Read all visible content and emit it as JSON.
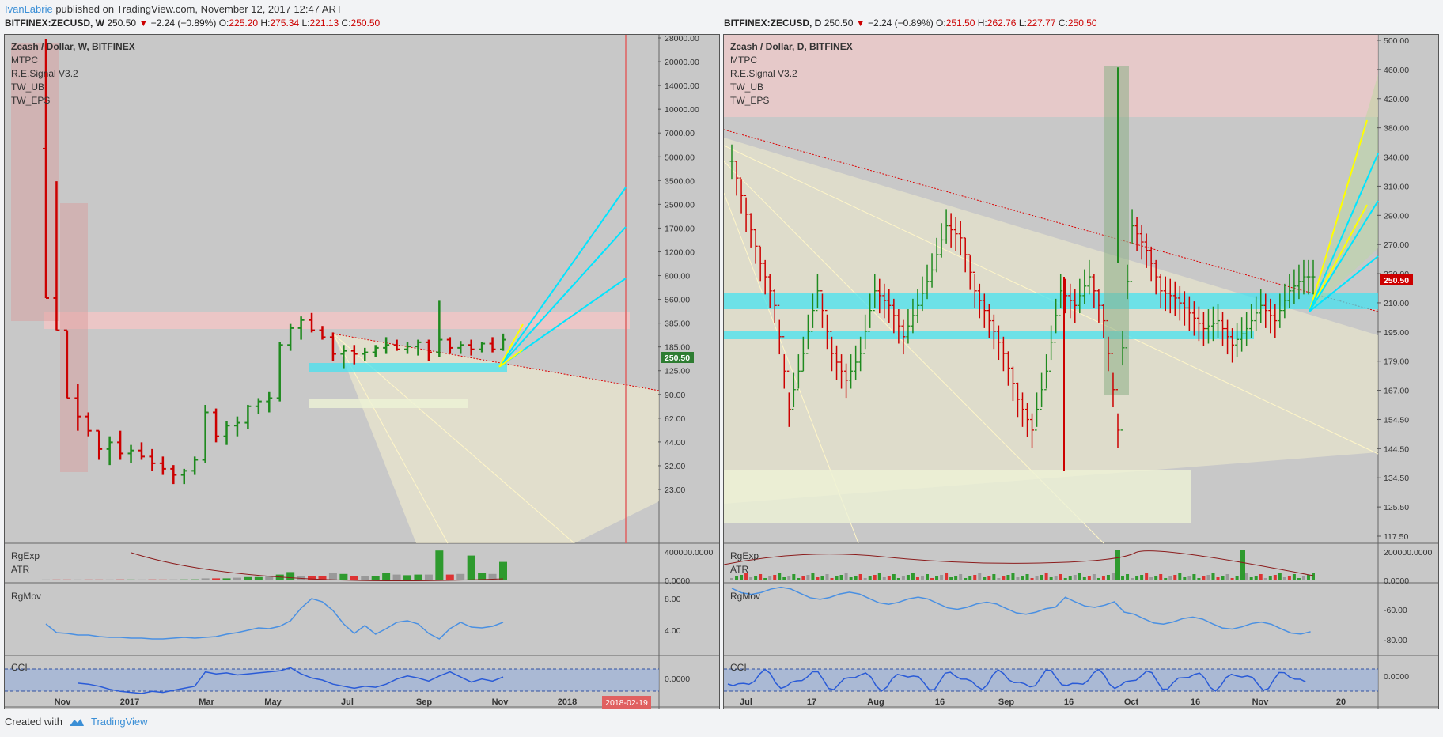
{
  "header": {
    "user": "IvanLabrie",
    "text": " published on TradingView.com, November 12, 2017 12:47 ART"
  },
  "left": {
    "symbol": "BITFINEX:ZECUSD, W",
    "price": "250.50",
    "change": "−2.24 (−0.89%)",
    "o_label": "O:",
    "o": "225.20",
    "h_label": "H:",
    "h": "275.34",
    "l_label": "L:",
    "l": "221.13",
    "c_label": "C:",
    "c": "250.50",
    "title": "Zcash / Dollar, W, BITFINEX",
    "studies": [
      "MTPC",
      "R.E.Signal V3.2",
      "TW_UB",
      "TW_EPS"
    ],
    "price_badge": "250.50",
    "date_badge": "2018-02-19",
    "sub1_labels": [
      "RgExp",
      "ATR"
    ],
    "sub2_label": "RgMov",
    "sub3_label": "CCI"
  },
  "right": {
    "symbol": "BITFINEX:ZECUSD, D",
    "price": "250.50",
    "change": "−2.24 (−0.89%)",
    "o_label": "O:",
    "o": "251.50",
    "h_label": "H:",
    "h": "262.76",
    "l_label": "L:",
    "l": "227.77",
    "c_label": "C:",
    "c": "250.50",
    "title": "Zcash / Dollar, D, BITFINEX",
    "studies": [
      "MTPC",
      "R.E.Signal V3.2",
      "TW_UB",
      "TW_EPS"
    ],
    "price_badge": "250.50",
    "sub1_labels": [
      "RgExp",
      "ATR"
    ],
    "sub2_label": "RgMov",
    "sub3_label": "CCI"
  },
  "footer": {
    "created": "Created with",
    "brand": "TradingView"
  },
  "colors": {
    "up": "#1f8a1f",
    "down": "#cc0000",
    "neutral": "#333333",
    "cyan": "#00e5ff",
    "yellow": "#ffff00",
    "badge": "#2e7d32",
    "accent_red": "#e06060"
  },
  "chart_data": [
    {
      "type": "candlestick",
      "title": "Zcash / Dollar, W, BITFINEX",
      "scale": "log",
      "y_ticks": [
        "28000.00",
        "20000.00",
        "14000.00",
        "10000.00",
        "7000.00",
        "5000.00",
        "3500.00",
        "2500.00",
        "1700.00",
        "1200.00",
        "800.00",
        "560.00",
        "385.00",
        "250.50",
        "185.00",
        "125.00",
        "90.00",
        "62.00",
        "44.00",
        "32.00",
        "23.00"
      ],
      "x_ticks": [
        "Nov",
        "2017",
        "Mar",
        "May",
        "Jul",
        "Sep",
        "Nov",
        "2018"
      ],
      "sub_axes": {
        "rgexp": [
          "400000.0000",
          "0.0000"
        ],
        "rgmov": [
          "8.00",
          "4.00"
        ],
        "cci": [
          "0.0000"
        ]
      },
      "candles": [
        {
          "o": 5000,
          "h": 28000,
          "l": 480,
          "c": 480
        },
        {
          "o": 480,
          "h": 3000,
          "l": 290,
          "c": 290
        },
        {
          "o": 290,
          "h": 290,
          "l": 100,
          "c": 100
        },
        {
          "o": 100,
          "h": 125,
          "l": 60,
          "c": 75
        },
        {
          "o": 75,
          "h": 80,
          "l": 55,
          "c": 60
        },
        {
          "o": 60,
          "h": 60,
          "l": 38,
          "c": 45
        },
        {
          "o": 45,
          "h": 55,
          "l": 35,
          "c": 50
        },
        {
          "o": 50,
          "h": 60,
          "l": 38,
          "c": 42
        },
        {
          "o": 42,
          "h": 48,
          "l": 36,
          "c": 44
        },
        {
          "o": 44,
          "h": 50,
          "l": 38,
          "c": 40
        },
        {
          "o": 40,
          "h": 45,
          "l": 32,
          "c": 36
        },
        {
          "o": 36,
          "h": 40,
          "l": 30,
          "c": 33
        },
        {
          "o": 33,
          "h": 35,
          "l": 26,
          "c": 30
        },
        {
          "o": 30,
          "h": 33,
          "l": 26,
          "c": 32
        },
        {
          "o": 32,
          "h": 40,
          "l": 30,
          "c": 38
        },
        {
          "o": 38,
          "h": 90,
          "l": 36,
          "c": 80
        },
        {
          "o": 80,
          "h": 85,
          "l": 50,
          "c": 55
        },
        {
          "o": 55,
          "h": 70,
          "l": 48,
          "c": 65
        },
        {
          "o": 65,
          "h": 75,
          "l": 55,
          "c": 68
        },
        {
          "o": 68,
          "h": 90,
          "l": 62,
          "c": 88
        },
        {
          "o": 88,
          "h": 100,
          "l": 78,
          "c": 95
        },
        {
          "o": 95,
          "h": 110,
          "l": 80,
          "c": 100
        },
        {
          "o": 100,
          "h": 240,
          "l": 95,
          "c": 230
        },
        {
          "o": 230,
          "h": 320,
          "l": 210,
          "c": 300
        },
        {
          "o": 300,
          "h": 360,
          "l": 250,
          "c": 340
        },
        {
          "o": 340,
          "h": 380,
          "l": 280,
          "c": 290
        },
        {
          "o": 290,
          "h": 310,
          "l": 250,
          "c": 260
        },
        {
          "o": 260,
          "h": 280,
          "l": 180,
          "c": 200
        },
        {
          "o": 200,
          "h": 230,
          "l": 160,
          "c": 210
        },
        {
          "o": 210,
          "h": 230,
          "l": 170,
          "c": 200
        },
        {
          "o": 200,
          "h": 220,
          "l": 180,
          "c": 205
        },
        {
          "o": 205,
          "h": 230,
          "l": 190,
          "c": 220
        },
        {
          "o": 220,
          "h": 260,
          "l": 200,
          "c": 230
        },
        {
          "o": 230,
          "h": 250,
          "l": 210,
          "c": 215
        },
        {
          "o": 215,
          "h": 240,
          "l": 200,
          "c": 225
        },
        {
          "o": 225,
          "h": 250,
          "l": 195,
          "c": 240
        },
        {
          "o": 240,
          "h": 250,
          "l": 180,
          "c": 205
        },
        {
          "o": 205,
          "h": 460,
          "l": 190,
          "c": 250
        },
        {
          "o": 250,
          "h": 260,
          "l": 200,
          "c": 220
        },
        {
          "o": 220,
          "h": 245,
          "l": 200,
          "c": 230
        },
        {
          "o": 230,
          "h": 250,
          "l": 195,
          "c": 215
        },
        {
          "o": 215,
          "h": 240,
          "l": 205,
          "c": 235
        },
        {
          "o": 235,
          "h": 260,
          "l": 205,
          "c": 215
        },
        {
          "o": 215,
          "h": 275,
          "l": 210,
          "c": 250
        }
      ],
      "rgexp": [
        0.002,
        0.002,
        0.002,
        0.002,
        0.002,
        0.002,
        0.002,
        0.003,
        0.002,
        0.002,
        0.003,
        0.002,
        0.003,
        0.003,
        0.004,
        0.02,
        0.02,
        0.02,
        0.03,
        0.04,
        0.04,
        0.05,
        0.08,
        0.12,
        0.06,
        0.05,
        0.05,
        0.1,
        0.09,
        0.06,
        0.06,
        0.06,
        0.1,
        0.08,
        0.07,
        0.08,
        0.08,
        0.46,
        0.08,
        0.09,
        0.38,
        0.1,
        0.09,
        0.28
      ],
      "rgmov": [
        4.8,
        3.7,
        3.6,
        3.4,
        3.4,
        3.2,
        3.1,
        3.1,
        3.0,
        3.0,
        2.9,
        2.9,
        3.0,
        3.1,
        3.0,
        3.1,
        3.2,
        3.5,
        3.7,
        4.0,
        4.3,
        4.2,
        4.5,
        5.2,
        6.8,
        8.0,
        7.6,
        6.5,
        4.8,
        3.6,
        4.6,
        3.5,
        4.2,
        5.0,
        5.2,
        4.8,
        3.6,
        2.9,
        4.2,
        5.0,
        4.4,
        4.3,
        4.5,
        5.0
      ],
      "cci": [
        null,
        null,
        null,
        -30,
        -40,
        -60,
        -90,
        -110,
        -120,
        -130,
        -110,
        -120,
        -100,
        -80,
        -60,
        80,
        60,
        70,
        50,
        60,
        70,
        80,
        90,
        120,
        60,
        20,
        0,
        -40,
        -60,
        -80,
        -60,
        -70,
        -40,
        10,
        40,
        20,
        -10,
        40,
        80,
        30,
        -20,
        10,
        -10,
        30
      ]
    },
    {
      "type": "candlestick",
      "title": "Zcash / Dollar, D, BITFINEX",
      "scale": "log",
      "y_ticks": [
        "500.00",
        "460.00",
        "420.00",
        "380.00",
        "340.00",
        "310.00",
        "290.00",
        "270.00",
        "250.50",
        "230.00",
        "210.00",
        "195.00",
        "179.00",
        "167.00",
        "154.50",
        "144.50",
        "134.50",
        "125.50",
        "117.50"
      ],
      "x_ticks": [
        "Jul",
        "17",
        "Aug",
        "16",
        "Sep",
        "16",
        "Oct",
        "16",
        "Nov",
        "20"
      ],
      "sub_axes": {
        "rgexp": [
          "200000.0000",
          "0.0000"
        ],
        "rgmov": [
          "-60.00",
          "-80.00"
        ],
        "cci": [
          "0.0000"
        ]
      }
    }
  ]
}
